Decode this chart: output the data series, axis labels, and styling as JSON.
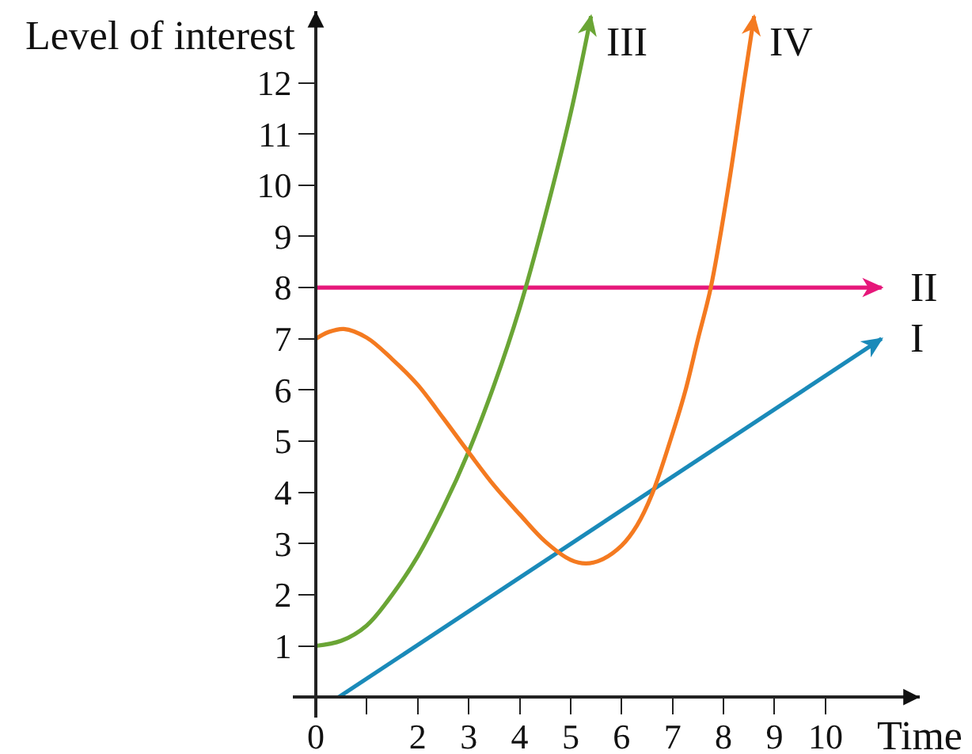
{
  "chart_data": {
    "type": "line",
    "xlabel": "Time",
    "ylabel": "Level of interest",
    "xlim": [
      -0.45,
      11.85
    ],
    "ylim": [
      -0.4,
      13.4
    ],
    "xticks": [
      {
        "value": 0,
        "label": "0"
      },
      {
        "value": 1,
        "label": null
      },
      2,
      3,
      4,
      5,
      6,
      7,
      8,
      9,
      10
    ],
    "yticks": [
      1,
      2,
      3,
      4,
      5,
      6,
      7,
      8,
      9,
      10,
      11,
      12
    ],
    "legend": false,
    "marker": "none",
    "line_style": "solid",
    "series": [
      {
        "name": "I",
        "color": "#1a8ab9",
        "x": [
          0.45,
          11.1
        ],
        "values": [
          0,
          7
        ]
      },
      {
        "name": "II",
        "color": "#e6177a",
        "x": [
          0,
          11.1
        ],
        "values": [
          8,
          8
        ]
      },
      {
        "name": "III",
        "color": "#6aa535",
        "x": [
          0,
          0.5,
          1,
          1.5,
          2,
          2.5,
          3,
          3.5,
          4,
          4.5,
          5,
          5.4
        ],
        "values": [
          1,
          1.1,
          1.4,
          2.0,
          2.75,
          3.7,
          4.8,
          6.1,
          7.6,
          9.4,
          11.4,
          13.3
        ]
      },
      {
        "name": "IV",
        "color": "#f47a20",
        "x": [
          0,
          0.25,
          0.55,
          1,
          1.5,
          2,
          2.5,
          3,
          3.5,
          4,
          4.5,
          5,
          5.3,
          5.6,
          6,
          6.3,
          6.6,
          7,
          7.25,
          7.5,
          7.75,
          8.1,
          8.4,
          8.6
        ],
        "values": [
          7,
          7.13,
          7.19,
          7.02,
          6.6,
          6.1,
          5.45,
          4.78,
          4.13,
          3.57,
          3.04,
          2.68,
          2.61,
          2.68,
          2.96,
          3.35,
          3.97,
          5.15,
          5.98,
          7,
          8,
          10,
          12,
          13.3
        ]
      }
    ]
  }
}
